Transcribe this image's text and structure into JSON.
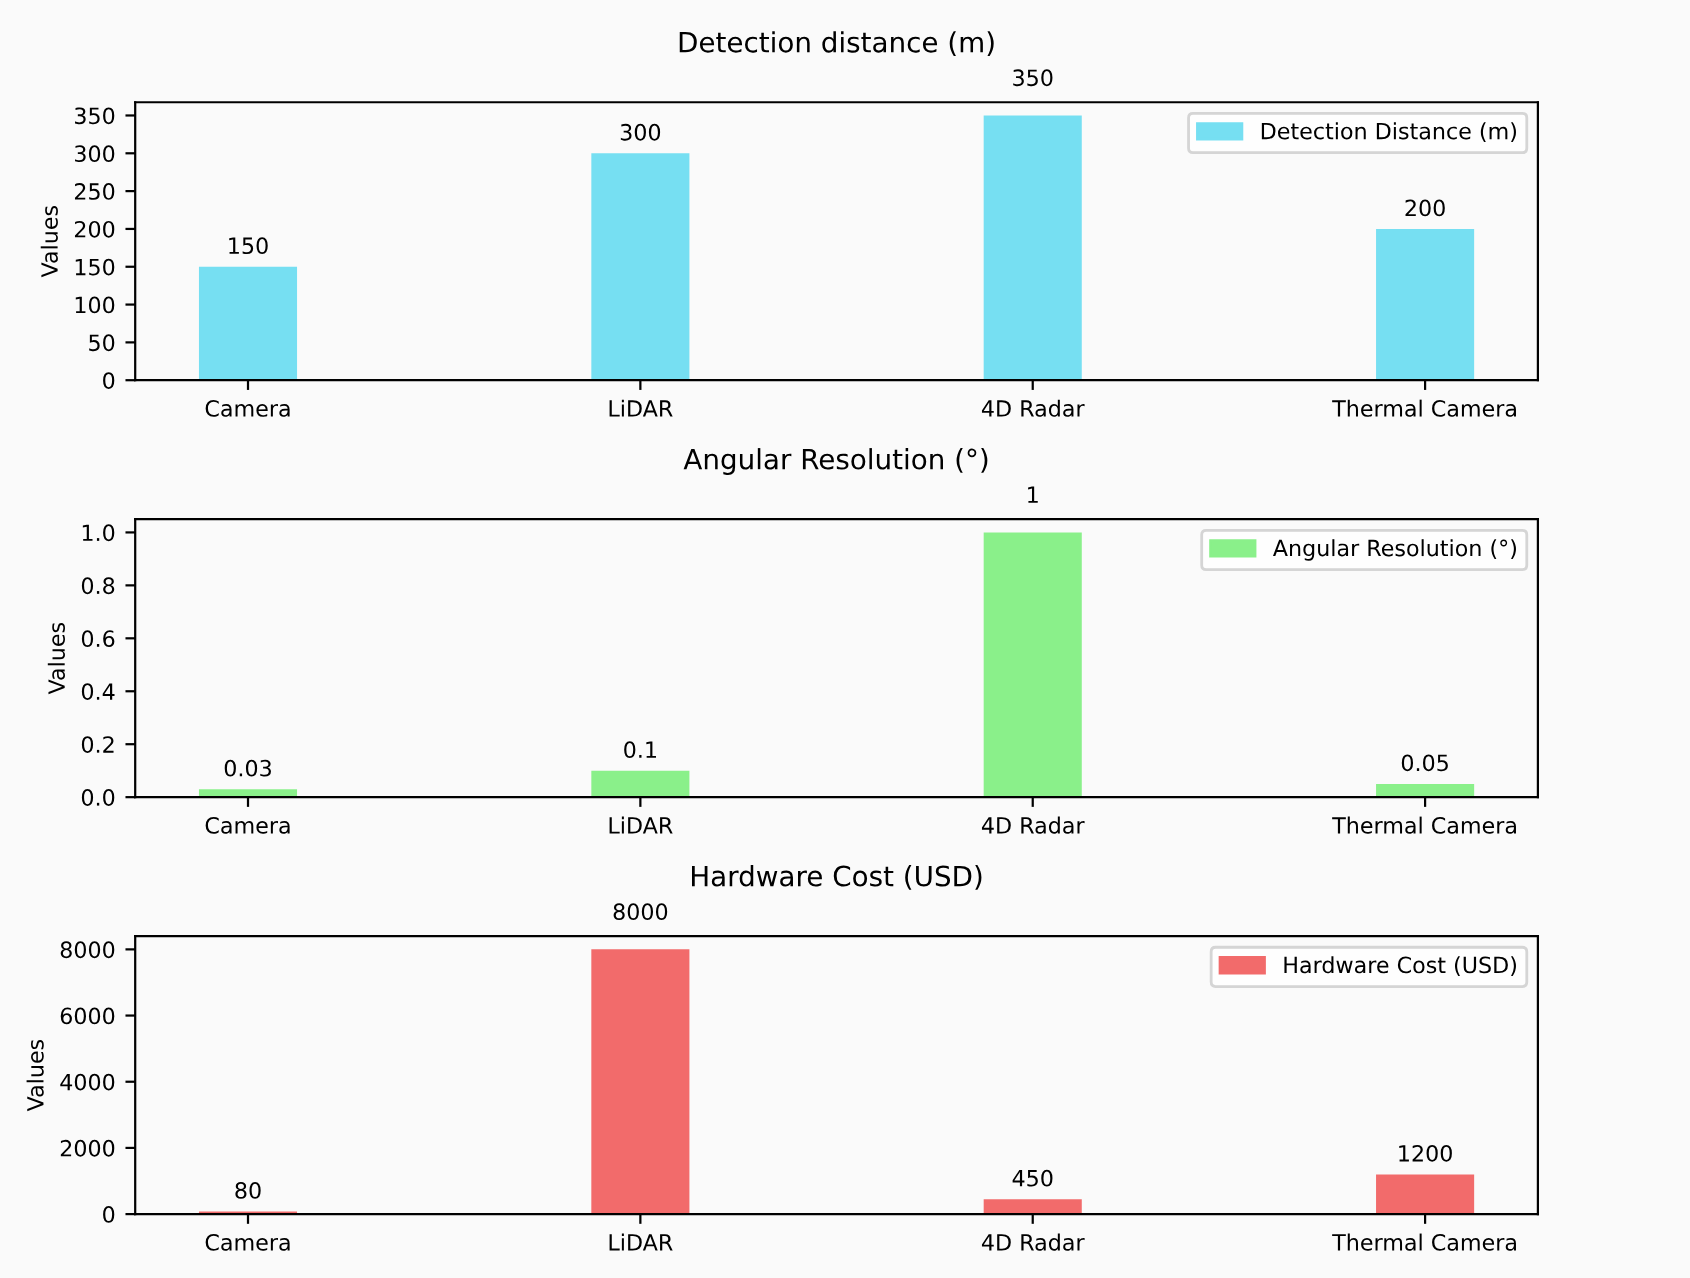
{
  "chart_data": [
    {
      "type": "bar",
      "title": "Detection distance (m)",
      "ylabel": "Values",
      "categories": [
        "Camera",
        "LiDAR",
        "4D Radar",
        "Thermal Camera"
      ],
      "series": [
        {
          "name": "Detection Distance (m)",
          "color": "#76dff2",
          "values": [
            150,
            300,
            350,
            200
          ]
        }
      ],
      "ylim": [
        0,
        367.5
      ],
      "yticks": [
        0,
        50,
        100,
        150,
        200,
        250,
        300,
        350
      ],
      "data_labels": true,
      "legend": "top right",
      "grid": false
    },
    {
      "type": "bar",
      "title": "Angular Resolution (°)",
      "ylabel": "Values",
      "categories": [
        "Camera",
        "LiDAR",
        "4D Radar",
        "Thermal Camera"
      ],
      "series": [
        {
          "name": "Angular Resolution (°)",
          "color": "#8af08a",
          "values": [
            0.03,
            0.1,
            1,
            0.05
          ]
        }
      ],
      "ylim": [
        0,
        1.05
      ],
      "yticks": [
        {
          "value": 0,
          "label": "0.0"
        },
        0.2,
        0.4,
        0.6,
        0.8,
        {
          "value": 1,
          "label": "1.0"
        }
      ],
      "data_labels": true,
      "legend": "top right",
      "grid": false
    },
    {
      "type": "bar",
      "title": "Hardware Cost (USD)",
      "ylabel": "Values",
      "categories": [
        "Camera",
        "LiDAR",
        "4D Radar",
        "Thermal Camera"
      ],
      "series": [
        {
          "name": "Hardware Cost (USD)",
          "color": "#f26b6b",
          "values": [
            80,
            8000,
            450,
            1200
          ]
        }
      ],
      "ylim": [
        0,
        8400
      ],
      "yticks": [
        0,
        2000,
        4000,
        6000,
        8000
      ],
      "data_labels": true,
      "legend": "top right",
      "grid": false
    }
  ]
}
